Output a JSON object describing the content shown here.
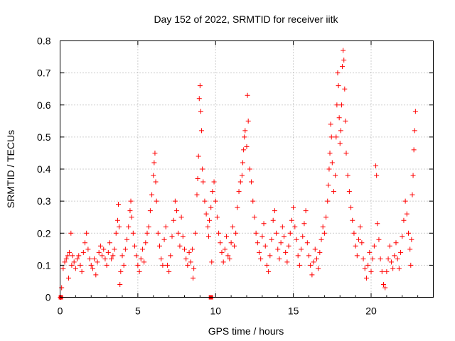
{
  "chart_data": {
    "type": "scatter",
    "title": "Day 152 of 2022, SRMTID for receiver iitk",
    "xlabel": "GPS time / hours",
    "ylabel": "SRMTID / TECUs",
    "xlim": [
      0,
      24
    ],
    "ylim": [
      0,
      0.8
    ],
    "x_ticks": [
      0,
      5,
      10,
      15,
      20
    ],
    "y_ticks": [
      0,
      0.1,
      0.2,
      0.3,
      0.4,
      0.5,
      0.6,
      0.7,
      0.8
    ],
    "x_tick_labels": [
      "0",
      "5",
      "10",
      "15",
      "20"
    ],
    "y_tick_labels": [
      "0",
      "0.1",
      "0.2",
      "0.3",
      "0.4",
      "0.5",
      "0.6",
      "0.7",
      "0.8"
    ],
    "grid": true,
    "marker": "+",
    "color": "#ff0000",
    "series": [
      {
        "name": "SRMTID",
        "points": [
          [
            0.02,
            0.0
          ],
          [
            0.05,
            0.0
          ],
          [
            0.1,
            0.03
          ],
          [
            0.2,
            0.09
          ],
          [
            0.3,
            0.11
          ],
          [
            0.4,
            0.12
          ],
          [
            0.5,
            0.13
          ],
          [
            0.55,
            0.06
          ],
          [
            0.6,
            0.14
          ],
          [
            0.7,
            0.2
          ],
          [
            0.75,
            0.1
          ],
          [
            0.8,
            0.13
          ],
          [
            0.9,
            0.11
          ],
          [
            1.0,
            0.09
          ],
          [
            1.1,
            0.12
          ],
          [
            1.2,
            0.13
          ],
          [
            1.3,
            0.1
          ],
          [
            1.4,
            0.08
          ],
          [
            1.5,
            0.14
          ],
          [
            1.6,
            0.17
          ],
          [
            1.7,
            0.2
          ],
          [
            1.8,
            0.15
          ],
          [
            1.9,
            0.12
          ],
          [
            2.0,
            0.1
          ],
          [
            2.1,
            0.09
          ],
          [
            2.2,
            0.12
          ],
          [
            2.3,
            0.07
          ],
          [
            2.4,
            0.11
          ],
          [
            2.5,
            0.14
          ],
          [
            2.6,
            0.16
          ],
          [
            2.7,
            0.13
          ],
          [
            2.8,
            0.15
          ],
          [
            2.9,
            0.12
          ],
          [
            3.0,
            0.1
          ],
          [
            3.1,
            0.14
          ],
          [
            3.2,
            0.17
          ],
          [
            3.3,
            0.12
          ],
          [
            3.4,
            0.13
          ],
          [
            3.5,
            0.15
          ],
          [
            3.6,
            0.2
          ],
          [
            3.7,
            0.24
          ],
          [
            3.75,
            0.29
          ],
          [
            3.8,
            0.22
          ],
          [
            3.85,
            0.04
          ],
          [
            3.9,
            0.08
          ],
          [
            4.0,
            0.13
          ],
          [
            4.1,
            0.1
          ],
          [
            4.2,
            0.15
          ],
          [
            4.3,
            0.18
          ],
          [
            4.4,
            0.22
          ],
          [
            4.5,
            0.27
          ],
          [
            4.55,
            0.3
          ],
          [
            4.6,
            0.25
          ],
          [
            4.7,
            0.2
          ],
          [
            4.8,
            0.16
          ],
          [
            4.9,
            0.13
          ],
          [
            5.0,
            0.1
          ],
          [
            5.1,
            0.08
          ],
          [
            5.2,
            0.12
          ],
          [
            5.3,
            0.15
          ],
          [
            5.4,
            0.11
          ],
          [
            5.5,
            0.17
          ],
          [
            5.6,
            0.2
          ],
          [
            5.7,
            0.22
          ],
          [
            5.8,
            0.27
          ],
          [
            5.9,
            0.32
          ],
          [
            6.0,
            0.38
          ],
          [
            6.05,
            0.42
          ],
          [
            6.1,
            0.45
          ],
          [
            6.15,
            0.36
          ],
          [
            6.2,
            0.3
          ],
          [
            6.3,
            0.2
          ],
          [
            6.4,
            0.16
          ],
          [
            6.5,
            0.12
          ],
          [
            6.6,
            0.1
          ],
          [
            6.7,
            0.18
          ],
          [
            6.8,
            0.22
          ],
          [
            6.9,
            0.1
          ],
          [
            7.0,
            0.08
          ],
          [
            7.1,
            0.13
          ],
          [
            7.2,
            0.19
          ],
          [
            7.3,
            0.24
          ],
          [
            7.4,
            0.3
          ],
          [
            7.5,
            0.27
          ],
          [
            7.6,
            0.2
          ],
          [
            7.7,
            0.16
          ],
          [
            7.8,
            0.25
          ],
          [
            7.9,
            0.19
          ],
          [
            8.0,
            0.15
          ],
          [
            8.1,
            0.12
          ],
          [
            8.2,
            0.1
          ],
          [
            8.3,
            0.14
          ],
          [
            8.4,
            0.11
          ],
          [
            8.5,
            0.15
          ],
          [
            8.55,
            0.06
          ],
          [
            8.6,
            0.09
          ],
          [
            8.7,
            0.2
          ],
          [
            8.8,
            0.32
          ],
          [
            8.85,
            0.37
          ],
          [
            8.9,
            0.44
          ],
          [
            8.95,
            0.62
          ],
          [
            9.0,
            0.66
          ],
          [
            9.05,
            0.58
          ],
          [
            9.1,
            0.52
          ],
          [
            9.15,
            0.4
          ],
          [
            9.2,
            0.36
          ],
          [
            9.3,
            0.3
          ],
          [
            9.4,
            0.26
          ],
          [
            9.5,
            0.22
          ],
          [
            9.55,
            0.19
          ],
          [
            9.6,
            0.24
          ],
          [
            9.7,
            0.28
          ],
          [
            9.75,
            0.11
          ],
          [
            9.8,
            0.33
          ],
          [
            9.9,
            0.36
          ],
          [
            10.0,
            0.3
          ],
          [
            10.1,
            0.25
          ],
          [
            10.2,
            0.2
          ],
          [
            10.3,
            0.17
          ],
          [
            10.4,
            0.14
          ],
          [
            10.5,
            0.11
          ],
          [
            10.6,
            0.15
          ],
          [
            10.7,
            0.19
          ],
          [
            10.8,
            0.13
          ],
          [
            10.9,
            0.12
          ],
          [
            11.0,
            0.17
          ],
          [
            11.1,
            0.22
          ],
          [
            11.2,
            0.16
          ],
          [
            11.3,
            0.2
          ],
          [
            11.4,
            0.28
          ],
          [
            11.5,
            0.33
          ],
          [
            11.6,
            0.36
          ],
          [
            11.7,
            0.38
          ],
          [
            11.75,
            0.42
          ],
          [
            11.8,
            0.46
          ],
          [
            11.85,
            0.5
          ],
          [
            11.9,
            0.52
          ],
          [
            12.0,
            0.47
          ],
          [
            12.05,
            0.63
          ],
          [
            12.1,
            0.55
          ],
          [
            12.2,
            0.4
          ],
          [
            12.3,
            0.36
          ],
          [
            12.4,
            0.3
          ],
          [
            12.5,
            0.25
          ],
          [
            12.6,
            0.2
          ],
          [
            12.7,
            0.17
          ],
          [
            12.8,
            0.14
          ],
          [
            12.9,
            0.12
          ],
          [
            13.0,
            0.19
          ],
          [
            13.1,
            0.23
          ],
          [
            13.2,
            0.16
          ],
          [
            13.3,
            0.1
          ],
          [
            13.4,
            0.08
          ],
          [
            13.5,
            0.13
          ],
          [
            13.6,
            0.18
          ],
          [
            13.7,
            0.24
          ],
          [
            13.8,
            0.27
          ],
          [
            13.9,
            0.2
          ],
          [
            14.0,
            0.15
          ],
          [
            14.1,
            0.12
          ],
          [
            14.2,
            0.17
          ],
          [
            14.3,
            0.22
          ],
          [
            14.4,
            0.19
          ],
          [
            14.5,
            0.14
          ],
          [
            14.6,
            0.11
          ],
          [
            14.7,
            0.16
          ],
          [
            14.8,
            0.2
          ],
          [
            14.9,
            0.24
          ],
          [
            15.0,
            0.28
          ],
          [
            15.1,
            0.22
          ],
          [
            15.2,
            0.18
          ],
          [
            15.3,
            0.13
          ],
          [
            15.4,
            0.1
          ],
          [
            15.5,
            0.15
          ],
          [
            15.6,
            0.19
          ],
          [
            15.7,
            0.23
          ],
          [
            15.8,
            0.27
          ],
          [
            15.9,
            0.17
          ],
          [
            16.0,
            0.13
          ],
          [
            16.1,
            0.1
          ],
          [
            16.2,
            0.07
          ],
          [
            16.3,
            0.11
          ],
          [
            16.4,
            0.15
          ],
          [
            16.5,
            0.12
          ],
          [
            16.6,
            0.09
          ],
          [
            16.7,
            0.14
          ],
          [
            16.8,
            0.18
          ],
          [
            16.9,
            0.22
          ],
          [
            17.0,
            0.2
          ],
          [
            17.1,
            0.25
          ],
          [
            17.2,
            0.3
          ],
          [
            17.25,
            0.35
          ],
          [
            17.3,
            0.4
          ],
          [
            17.35,
            0.45
          ],
          [
            17.4,
            0.54
          ],
          [
            17.45,
            0.5
          ],
          [
            17.5,
            0.42
          ],
          [
            17.6,
            0.33
          ],
          [
            17.7,
            0.38
          ],
          [
            17.75,
            0.5
          ],
          [
            17.8,
            0.6
          ],
          [
            17.85,
            0.7
          ],
          [
            17.9,
            0.66
          ],
          [
            17.95,
            0.56
          ],
          [
            18.0,
            0.48
          ],
          [
            18.05,
            0.52
          ],
          [
            18.1,
            0.6
          ],
          [
            18.15,
            0.72
          ],
          [
            18.2,
            0.77
          ],
          [
            18.25,
            0.74
          ],
          [
            18.3,
            0.65
          ],
          [
            18.35,
            0.55
          ],
          [
            18.4,
            0.45
          ],
          [
            18.5,
            0.38
          ],
          [
            18.6,
            0.33
          ],
          [
            18.7,
            0.28
          ],
          [
            18.8,
            0.24
          ],
          [
            18.9,
            0.2
          ],
          [
            19.0,
            0.16
          ],
          [
            19.1,
            0.13
          ],
          [
            19.2,
            0.18
          ],
          [
            19.3,
            0.22
          ],
          [
            19.4,
            0.17
          ],
          [
            19.5,
            0.12
          ],
          [
            19.6,
            0.09
          ],
          [
            19.7,
            0.06
          ],
          [
            19.8,
            0.1
          ],
          [
            19.9,
            0.14
          ],
          [
            20.0,
            0.08
          ],
          [
            20.1,
            0.12
          ],
          [
            20.2,
            0.16
          ],
          [
            20.3,
            0.41
          ],
          [
            20.35,
            0.38
          ],
          [
            20.4,
            0.23
          ],
          [
            20.5,
            0.18
          ],
          [
            20.6,
            0.12
          ],
          [
            20.7,
            0.08
          ],
          [
            20.8,
            0.04
          ],
          [
            20.9,
            0.03
          ],
          [
            21.0,
            0.08
          ],
          [
            21.1,
            0.12
          ],
          [
            21.2,
            0.16
          ],
          [
            21.3,
            0.11
          ],
          [
            21.4,
            0.09
          ],
          [
            21.5,
            0.13
          ],
          [
            21.6,
            0.17
          ],
          [
            21.7,
            0.12
          ],
          [
            21.8,
            0.09
          ],
          [
            21.9,
            0.14
          ],
          [
            22.0,
            0.19
          ],
          [
            22.1,
            0.24
          ],
          [
            22.2,
            0.3
          ],
          [
            22.3,
            0.26
          ],
          [
            22.4,
            0.2
          ],
          [
            22.5,
            0.15
          ],
          [
            22.55,
            0.1
          ],
          [
            22.6,
            0.18
          ],
          [
            22.65,
            0.32
          ],
          [
            22.7,
            0.38
          ],
          [
            22.75,
            0.46
          ],
          [
            22.8,
            0.52
          ],
          [
            22.85,
            0.58
          ]
        ]
      }
    ],
    "baseline_markers": [
      0.05,
      9.7
    ]
  }
}
